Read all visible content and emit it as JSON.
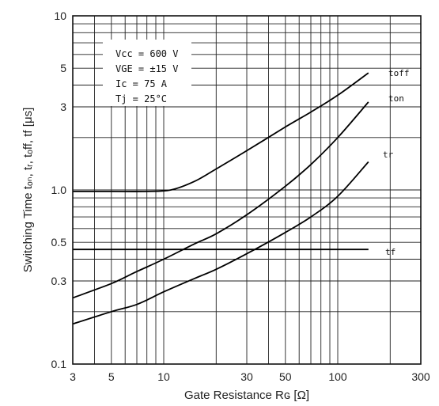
{
  "chart_data": {
    "type": "line",
    "xscale": "log",
    "yscale": "log",
    "xlim": [
      3,
      300
    ],
    "ylim": [
      0.1,
      10
    ],
    "grid": true,
    "xlabel": "Gate Resistance Rɢ [Ω]",
    "ylabel": "Switching Time tₒₙ, tᵣ, tₒff, tf [μs]",
    "x_ticks": [
      "3",
      "5",
      "10",
      "30",
      "50",
      "100",
      "300"
    ],
    "y_ticks": [
      "0.1",
      "0.3",
      "0.5",
      "1.0",
      "3",
      "5",
      "10"
    ],
    "conditions": [
      "Vcc = 600 V",
      "VGE = ±15 V",
      "Ic = 75 A",
      "Tj = 25°C"
    ],
    "series": [
      {
        "name": "toff",
        "x": [
          3,
          5,
          8,
          11,
          15,
          20,
          30,
          50,
          70,
          100,
          150
        ],
        "y": [
          0.98,
          0.98,
          0.98,
          1.0,
          1.12,
          1.32,
          1.68,
          2.3,
          2.8,
          3.5,
          4.7
        ]
      },
      {
        "name": "ton",
        "x": [
          3,
          5,
          7,
          10,
          15,
          20,
          30,
          50,
          70,
          100,
          150
        ],
        "y": [
          0.24,
          0.29,
          0.34,
          0.4,
          0.49,
          0.56,
          0.72,
          1.05,
          1.4,
          2.0,
          3.2
        ]
      },
      {
        "name": "tr",
        "x": [
          3,
          5,
          7,
          10,
          15,
          20,
          30,
          50,
          70,
          100,
          150
        ],
        "y": [
          0.17,
          0.2,
          0.22,
          0.26,
          0.31,
          0.35,
          0.43,
          0.57,
          0.7,
          0.92,
          1.45
        ]
      },
      {
        "name": "tf",
        "x": [
          3,
          150
        ],
        "y": [
          0.455,
          0.455
        ]
      }
    ]
  }
}
